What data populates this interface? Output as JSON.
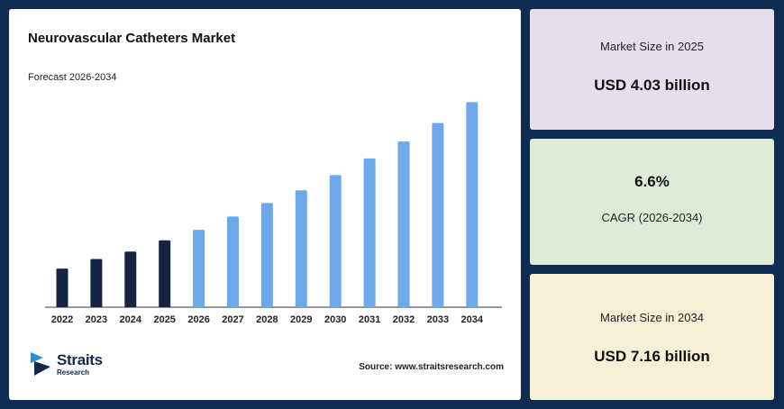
{
  "chart_data": {
    "type": "bar",
    "title": "Neurovascular Catheters Market",
    "subtitle": "Forecast 2026-2034",
    "categories": [
      "2022",
      "2023",
      "2024",
      "2025",
      "2026",
      "2027",
      "2028",
      "2029",
      "2030",
      "2031",
      "2032",
      "2033",
      "2034"
    ],
    "values": [
      3.38,
      4.21,
      4.87,
      5.85,
      6.76,
      7.92,
      9.1,
      10.22,
      11.54,
      13.0,
      14.48,
      16.1,
      17.92
    ],
    "value_unit": "relative bar height (no axis printed)",
    "ylim": [
      0,
      20
    ],
    "grid": false,
    "legend": "none",
    "colors": {
      "historical": "#162441",
      "forecast": "#6fa8e8",
      "axis": "#333333"
    },
    "historical_count": 4
  },
  "source": "Source: www.straitsresearch.com",
  "logo": {
    "name": "Straits",
    "sub": "Research",
    "icon": "straits-logo-icon"
  },
  "cards": [
    {
      "label": "Market Size in 2025",
      "value": "USD 4.03 billion"
    },
    {
      "label": "CAGR (2026-2034)",
      "value": "6.6%"
    },
    {
      "label": "Market Size in 2034",
      "value": "USD 7.16 billion"
    }
  ]
}
